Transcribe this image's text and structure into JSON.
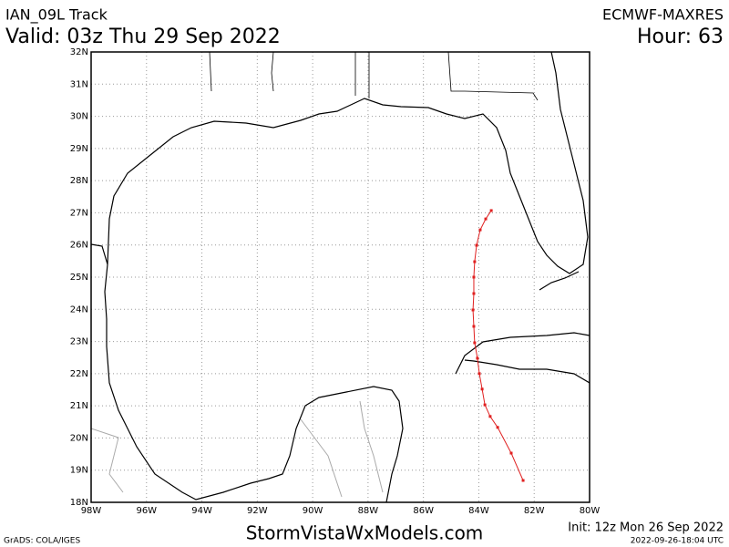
{
  "chart_data": {
    "type": "line",
    "title": "IAN_09L Track",
    "subtitle": "Valid: 03z Thu 29 Sep 2022",
    "model": "ECMWF-MAXRES",
    "hour": "Hour: 63",
    "footer": "StormVistaWxModels.com",
    "init": "Init: 12z Mon 26 Sep 2022",
    "credit": "GrADS: COLA/IGES",
    "timestamp": "2022-09-26-18:04 UTC",
    "x": [
      -82.4,
      -82.83,
      -83.32,
      -83.59,
      -83.78,
      -83.88,
      -83.98,
      -84.05,
      -84.15,
      -84.18,
      -84.21,
      -84.18,
      -84.18,
      -84.15,
      -84.08,
      -83.95,
      -83.75,
      -83.55
    ],
    "series": [
      {
        "color": "#e02020",
        "values": [
          18.68,
          19.53,
          20.33,
          20.67,
          21.03,
          21.52,
          22.0,
          22.48,
          22.96,
          23.47,
          23.98,
          24.49,
          25.0,
          25.48,
          25.99,
          26.47,
          26.81,
          27.07
        ]
      }
    ],
    "xlim": [
      -98,
      -80
    ],
    "ylim": [
      18,
      32
    ],
    "xticks": [
      {
        "value": -98,
        "label": "98W"
      },
      {
        "value": -96,
        "label": "96W"
      },
      {
        "value": -94,
        "label": "94W"
      },
      {
        "value": -92,
        "label": "92W"
      },
      {
        "value": -90,
        "label": "90W"
      },
      {
        "value": -88,
        "label": "88W"
      },
      {
        "value": -86,
        "label": "86W"
      },
      {
        "value": -84,
        "label": "84W"
      },
      {
        "value": -82,
        "label": "82W"
      },
      {
        "value": -80,
        "label": "80W"
      }
    ],
    "yticks": [
      {
        "value": 18,
        "label": "18N"
      },
      {
        "value": 19,
        "label": "19N"
      },
      {
        "value": 20,
        "label": "20N"
      },
      {
        "value": 21,
        "label": "21N"
      },
      {
        "value": 22,
        "label": "22N"
      },
      {
        "value": 23,
        "label": "23N"
      },
      {
        "value": 24,
        "label": "24N"
      },
      {
        "value": 25,
        "label": "25N"
      },
      {
        "value": 26,
        "label": "26N"
      },
      {
        "value": 27,
        "label": "27N"
      },
      {
        "value": 28,
        "label": "28N"
      },
      {
        "value": 29,
        "label": "29N"
      },
      {
        "value": 30,
        "label": "30N"
      },
      {
        "value": 31,
        "label": "31N"
      },
      {
        "value": 32,
        "label": "32N"
      }
    ],
    "grid": true
  }
}
